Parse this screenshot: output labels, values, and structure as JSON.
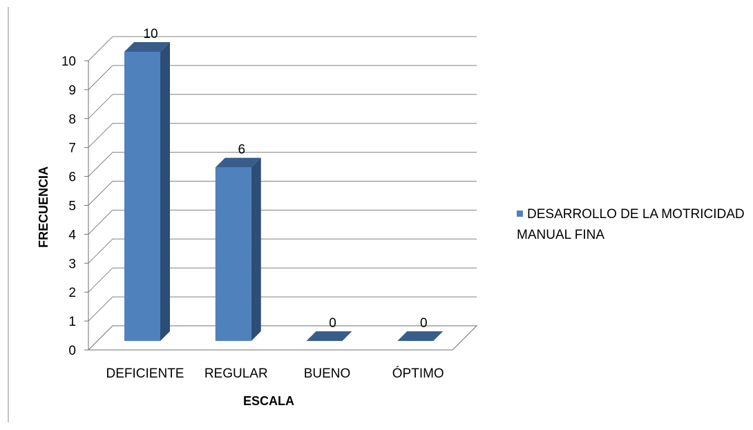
{
  "chart_data": {
    "type": "bar",
    "categories": [
      "DEFICIENTE",
      "REGULAR",
      "BUENO",
      "ÓPTIMO"
    ],
    "series": [
      {
        "name": "DESARROLLO DE LA MOTRICIDAD MANUAL FINA",
        "values": [
          10,
          6,
          0,
          0
        ]
      }
    ],
    "data_labels": [
      "10",
      "6",
      "0",
      "0"
    ],
    "title": "",
    "xlabel": "ESCALA",
    "ylabel": "FRECUENCIA",
    "ylim": [
      0,
      10
    ],
    "yticks": [
      "0",
      "1",
      "2",
      "3",
      "4",
      "5",
      "6",
      "7",
      "8",
      "9",
      "10"
    ],
    "grid": true,
    "legend_position": "right",
    "style": "3d-column",
    "colors": {
      "bar_front": "#4f81bd",
      "bar_side": "#2c4d75",
      "bar_top": "#385d8a",
      "grid": "#808080",
      "frame": "#6f6f6f"
    }
  }
}
